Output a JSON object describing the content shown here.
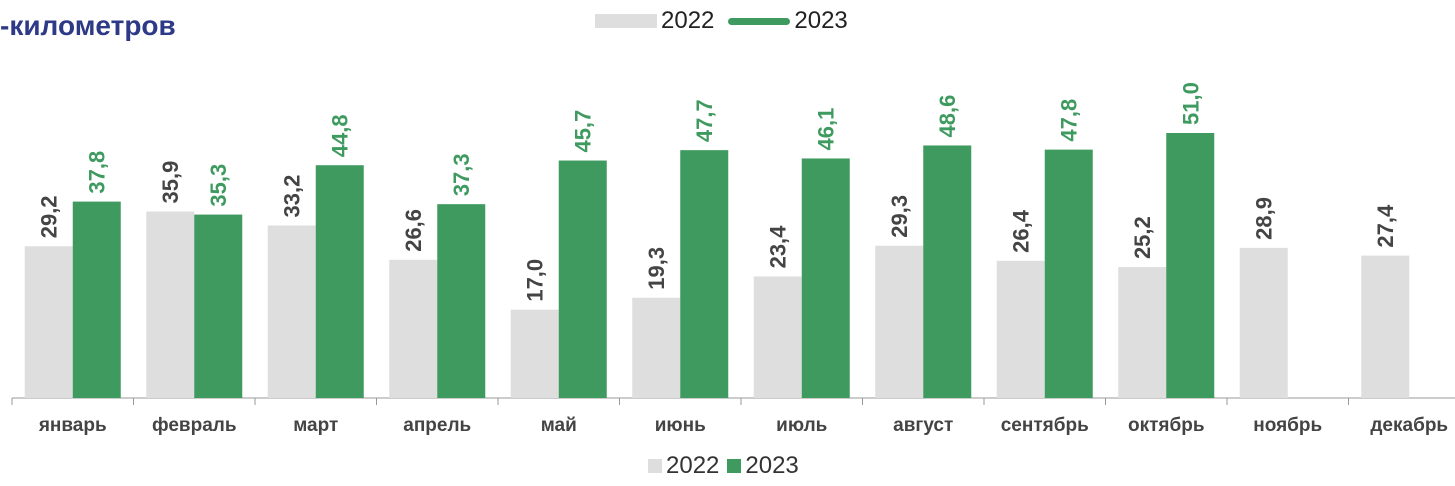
{
  "title": "-километров",
  "legend": {
    "top": [
      {
        "label": "2022",
        "color": "#dedede"
      },
      {
        "label": "2023",
        "color": "#3e9a5f"
      }
    ],
    "bottom": [
      {
        "label": "2022",
        "color": "#dedede"
      },
      {
        "label": "2023",
        "color": "#3e9a5f"
      }
    ]
  },
  "colors": {
    "series_2022": "#dedede",
    "series_2023": "#3e9a5f",
    "label_2022": "#444444",
    "label_2023": "#3e9a5f",
    "axis": "#999999",
    "title": "#2e3a87"
  },
  "chart_data": {
    "type": "bar",
    "categories": [
      "январь",
      "февраль",
      "март",
      "апрель",
      "май",
      "июнь",
      "июль",
      "август",
      "сентябрь",
      "октябрь",
      "ноябрь",
      "декабрь"
    ],
    "series": [
      {
        "name": "2022",
        "values": [
          29.2,
          35.9,
          33.2,
          26.6,
          17.0,
          19.3,
          23.4,
          29.3,
          26.4,
          25.2,
          28.9,
          27.4
        ],
        "labels": [
          "29,2",
          "35,9",
          "33,2",
          "26,6",
          "17,0",
          "19,3",
          "23,4",
          "29,3",
          "26,4",
          "25,2",
          "28,9",
          "27,4"
        ]
      },
      {
        "name": "2023",
        "values": [
          37.8,
          35.3,
          44.8,
          37.3,
          45.7,
          47.7,
          46.1,
          48.6,
          47.8,
          51.0,
          null,
          null
        ],
        "labels": [
          "37,8",
          "35,3",
          "44,8",
          "37,3",
          "45,7",
          "47,7",
          "46,1",
          "48,6",
          "47,8",
          "51,0",
          null,
          null
        ]
      }
    ],
    "ylim": [
      0,
      51
    ],
    "grid": false,
    "legend_position": "top-center and bottom-center"
  }
}
